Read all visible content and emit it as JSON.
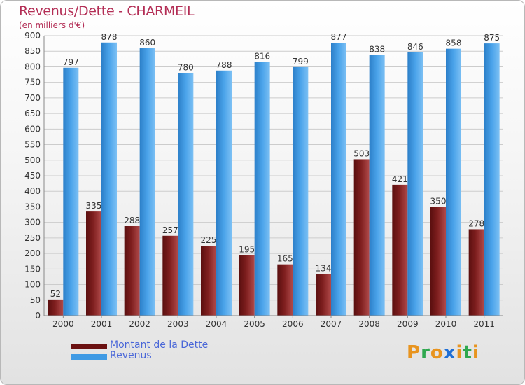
{
  "header": {
    "title": "Revenus/Dette - CHARMEIL",
    "subtitle": "(en milliers d'€)"
  },
  "colors": {
    "dette": "#7a1a1a",
    "revenus": "#3f9ae4",
    "title": "#b32d55",
    "legend_text": "#4a67d8",
    "grid": "#cccccc"
  },
  "legend": {
    "items": [
      {
        "label": "Montant de la Dette",
        "color": "#6b1111"
      },
      {
        "label": "Revenus",
        "color": "#3f9ae4"
      }
    ]
  },
  "logo": {
    "letters": [
      "P",
      "r",
      "o",
      "x",
      "i",
      "t",
      "i"
    ],
    "colors": [
      "#e8941f",
      "#2fa84f",
      "#e8941f",
      "#1f6fd6",
      "#e8941f",
      "#2fa84f",
      "#e8941f"
    ]
  },
  "chart_data": {
    "type": "bar",
    "categories": [
      "2000",
      "2001",
      "2002",
      "2003",
      "2004",
      "2005",
      "2006",
      "2007",
      "2008",
      "2009",
      "2010",
      "2011"
    ],
    "series": [
      {
        "name": "Montant de la Dette",
        "values": [
          52,
          335,
          288,
          257,
          225,
          195,
          165,
          134,
          503,
          421,
          350,
          278
        ]
      },
      {
        "name": "Revenus",
        "values": [
          797,
          878,
          860,
          780,
          788,
          816,
          799,
          877,
          838,
          846,
          858,
          875
        ]
      }
    ],
    "ylim": [
      0,
      900
    ],
    "yticks": [
      0,
      50,
      100,
      150,
      200,
      250,
      300,
      350,
      400,
      450,
      500,
      550,
      600,
      650,
      700,
      750,
      800,
      850,
      900
    ],
    "grid": true,
    "legend_position": "bottom-left",
    "data_labels": true
  }
}
